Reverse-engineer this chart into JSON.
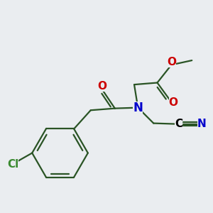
{
  "bg_color": "#eaedf0",
  "bond_color": "#2a5425",
  "atom_colors": {
    "O": "#cc0000",
    "N": "#0000cc",
    "Cl": "#3a8a30",
    "C": "#000000"
  },
  "lw": 1.6,
  "fs": 11
}
